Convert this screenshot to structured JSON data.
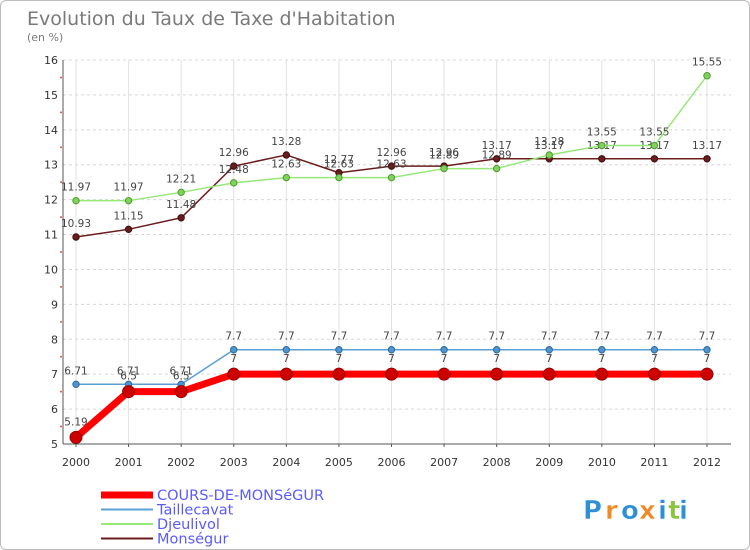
{
  "chart_data": {
    "type": "line",
    "title": "Evolution du Taux de Taxe d'Habitation",
    "ylabel": "(en %)",
    "xlabel": "",
    "categories": [
      "2000",
      "2001",
      "2002",
      "2003",
      "2004",
      "2005",
      "2006",
      "2007",
      "2008",
      "2009",
      "2010",
      "2011",
      "2012"
    ],
    "ylim": [
      5,
      16
    ],
    "yticks": [
      5,
      6,
      7,
      8,
      9,
      10,
      11,
      12,
      13,
      14,
      15,
      16
    ],
    "grid": true,
    "legend_position": "bottom-left",
    "series": [
      {
        "name": "Monségur",
        "color": "#6b1c1c",
        "values": [
          10.93,
          11.15,
          11.48,
          12.96,
          13.28,
          12.77,
          12.96,
          12.96,
          13.17,
          13.17,
          13.17,
          13.17,
          13.17
        ],
        "labels": [
          "10.93",
          "11.15",
          "11.48",
          "12.96",
          "13.28",
          "12.77",
          "12.96",
          "12.96",
          "13.17",
          "13.17",
          "13.17",
          "13.17",
          "13.17"
        ]
      },
      {
        "name": "Djeulivol",
        "color": "#96e878",
        "values": [
          11.97,
          11.97,
          12.21,
          12.48,
          12.63,
          12.63,
          12.63,
          12.89,
          12.89,
          13.28,
          13.55,
          13.55,
          15.55
        ],
        "labels": [
          "11.97",
          "11.97",
          "12.21",
          "12.48",
          "12.63",
          "12.63",
          "12.63",
          "12.89",
          "12.89",
          "13.28",
          "13.55",
          "13.55",
          "15.55"
        ]
      },
      {
        "name": "Taillecavat",
        "color": "#5a9fd4",
        "values": [
          6.71,
          6.71,
          6.71,
          7.7,
          7.7,
          7.7,
          7.7,
          7.7,
          7.7,
          7.7,
          7.7,
          7.7,
          7.7
        ],
        "labels": [
          "6.71",
          "6.71",
          "6.71",
          "7.7",
          "7.7",
          "7.7",
          "7.7",
          "7.7",
          "7.7",
          "7.7",
          "7.7",
          "7.7",
          "7.7"
        ]
      },
      {
        "name": "COURS-DE-MONSéGUR",
        "color": "#ff0000",
        "values": [
          5.19,
          6.5,
          6.5,
          7,
          7,
          7,
          7,
          7,
          7,
          7,
          7,
          7,
          7
        ],
        "labels": [
          "5.19",
          "6.5",
          "6.5",
          "7",
          "7",
          "7",
          "7",
          "7",
          "7",
          "7",
          "7",
          "7",
          "7"
        ]
      }
    ],
    "legend_order": [
      "COURS-DE-MONSéGUR",
      "Taillecavat",
      "Djeulivol",
      "Monségur"
    ]
  },
  "logo": {
    "letters": [
      "P",
      "r",
      "o",
      "x",
      "i",
      "t",
      "i"
    ]
  }
}
